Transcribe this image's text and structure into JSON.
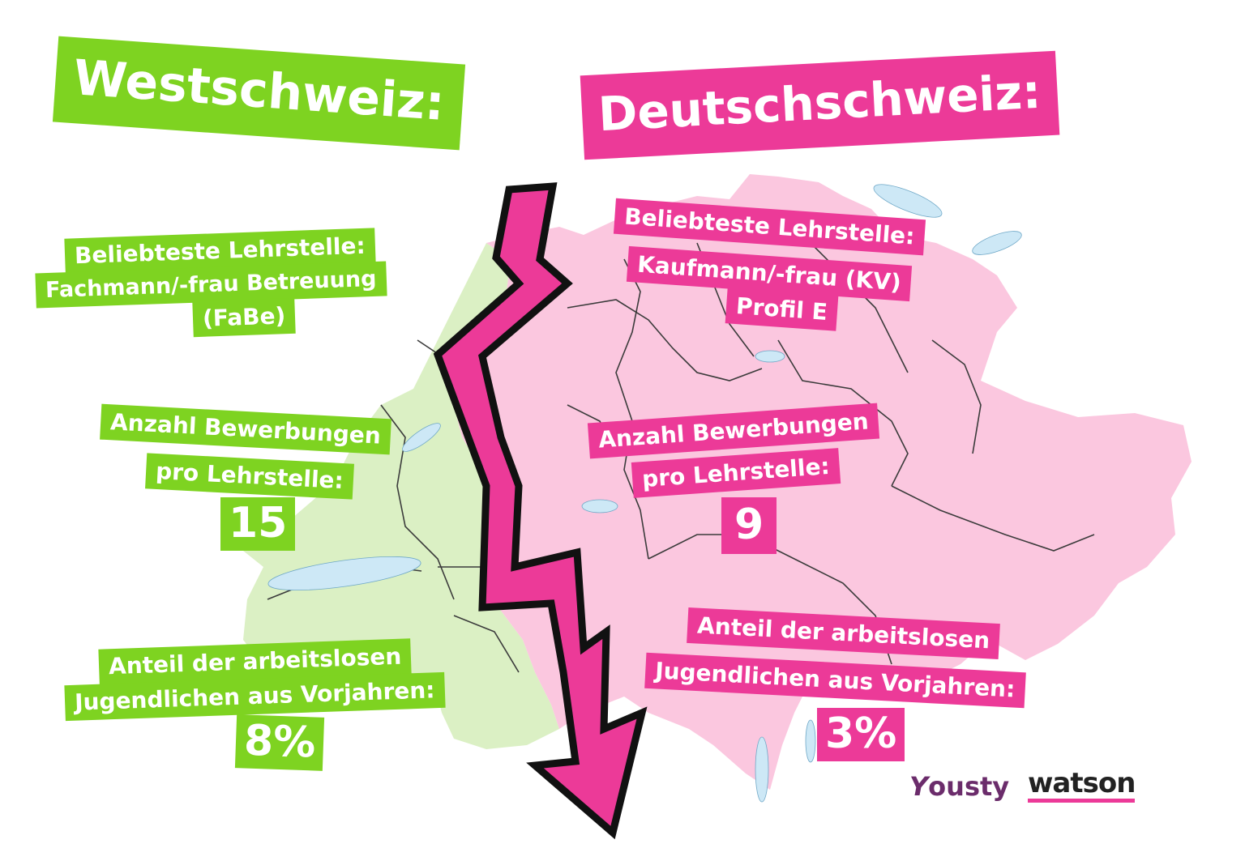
{
  "colors": {
    "west": "#7ed321",
    "east": "#ec3a98",
    "west_map": "#dbf0c4",
    "east_map": "#fbc7df",
    "border": "#3b3b3b",
    "lake": "#cde8f6",
    "arrow_fill": "#ec3a98",
    "arrow_outline": "#111111",
    "yousty": "#6b2c6b",
    "watson": "#222222",
    "watson_underline": "#ec3a98"
  },
  "west": {
    "heading": "Westschweiz:",
    "popular_label": "Beliebteste Lehrstelle:",
    "popular_value_line1": "Fachmann/-frau Betreuung",
    "popular_value_line2": "(FaBe)",
    "applications_label_line1": "Anzahl Bewerbungen",
    "applications_label_line2": "pro Lehrstelle:",
    "applications_value": "15",
    "unemployed_label_line1": "Anteil der arbeitslosen",
    "unemployed_label_line2": "Jugendlichen aus Vorjahren:",
    "unemployed_value": "8%"
  },
  "east": {
    "heading": "Deutschschweiz:",
    "popular_label": "Beliebteste Lehrstelle:",
    "popular_value_line1": "Kaufmann/-frau (KV)",
    "popular_value_line2": "Profil E",
    "applications_label_line1": "Anzahl Bewerbungen",
    "applications_label_line2": "pro Lehrstelle:",
    "applications_value": "9",
    "unemployed_label_line1": "Anteil der arbeitslosen",
    "unemployed_label_line2": "Jugendlichen aus Vorjahren:",
    "unemployed_value": "3%"
  },
  "logos": {
    "yousty_mark": "Y",
    "yousty_text": "ousty",
    "watson": "watson"
  }
}
